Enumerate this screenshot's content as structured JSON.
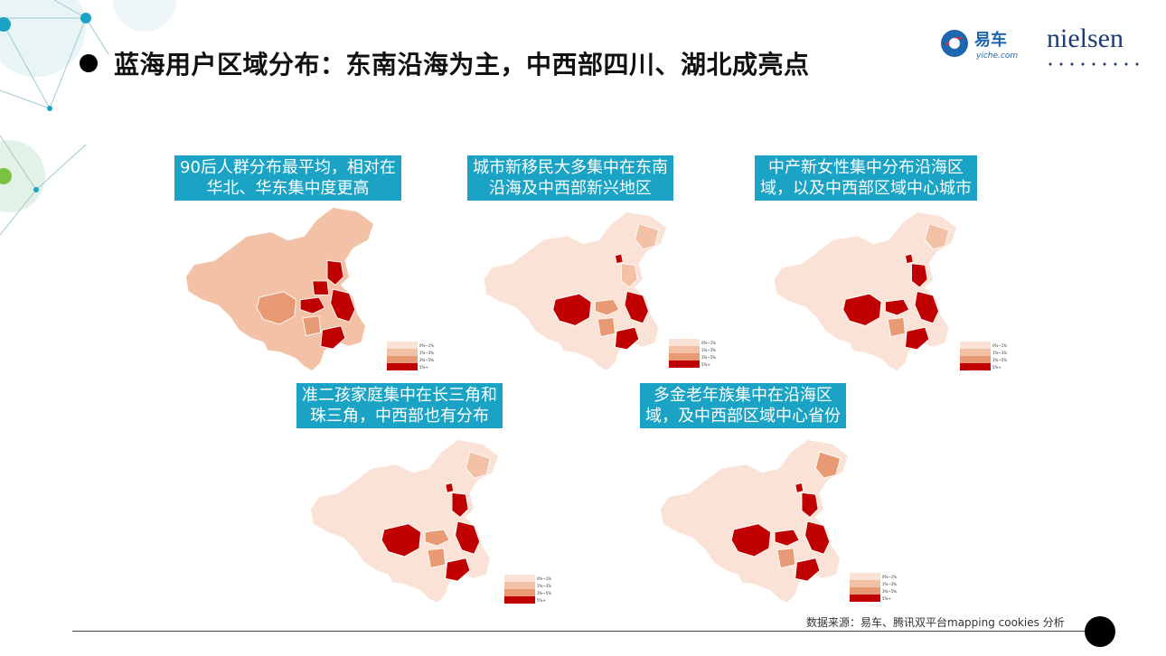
{
  "title": "蓝海用户区域分布：东南沿海为主，中西部四川、湖北成亮点",
  "logos": {
    "yiche_text": "易车",
    "yiche_sub": "yiche.com",
    "nielsen": "nielsen"
  },
  "colors": {
    "caption_bg": "#1aa3c4",
    "level1": "#fbe2d6",
    "level2": "#f2c1a6",
    "level3": "#e89a74",
    "level4": "#c00000"
  },
  "panels": [
    {
      "caption_line1": "90后人群分布最平均，相对在",
      "caption_line2": "华北、华东集中度更高",
      "legend": [
        "0%~1%",
        "1%~3%",
        "3%~5%",
        "5%+"
      ]
    },
    {
      "caption_line1": "城市新移民大多集中在东南",
      "caption_line2": "沿海及中西部新兴地区",
      "legend": [
        "0%~1%",
        "1%~3%",
        "3%~5%",
        "5%+"
      ]
    },
    {
      "caption_line1": "中产新女性集中分布沿海区",
      "caption_line2": "域，以及中西部区域中心城市",
      "legend": [
        "0%~1%",
        "1%~3%",
        "3%~5%",
        "5%+"
      ]
    },
    {
      "caption_line1": "准二孩家庭集中在长三角和",
      "caption_line2": "珠三角，中西部也有分布",
      "legend": [
        "0%~1%",
        "1%~3%",
        "3%~5%",
        "5%+"
      ]
    },
    {
      "caption_line1": "多金老年族集中在沿海区",
      "caption_line2": "域，及中西部区域中心省份",
      "legend": [
        "0%~1%",
        "1%~3%",
        "3%~5%",
        "5%+"
      ]
    }
  ],
  "source": "数据来源：易车、腾讯双平台mapping cookies 分析"
}
